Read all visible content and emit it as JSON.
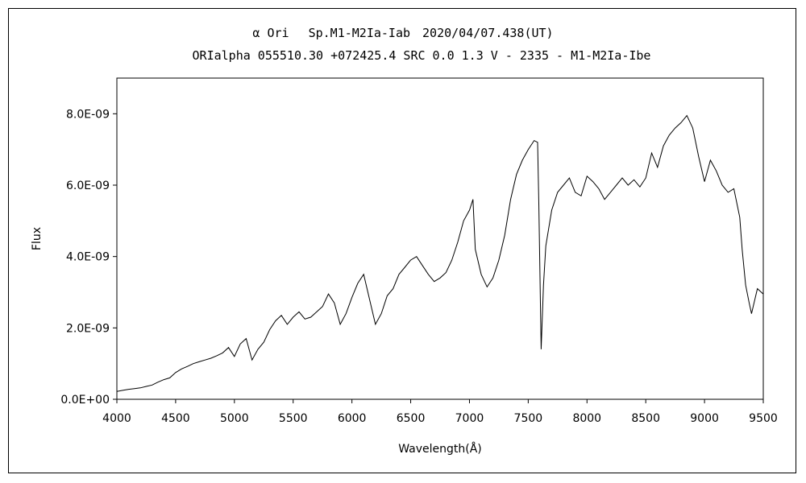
{
  "chart_data": {
    "type": "line",
    "title": "α Ori　 Sp.M1-M2Ia-Iab　2020/04/07.438(UT)",
    "subtitle": "ORIalpha 055510.30 +072425.4 SRC 0.0 1.3 V - 2335 - M1-M2Ia-Ibe",
    "xlabel": "Wavelength(Å)",
    "ylabel": "Flux",
    "xlim": [
      4000,
      9500
    ],
    "ylim": [
      0,
      9e-09
    ],
    "xticks": [
      4000,
      4500,
      5000,
      5500,
      6000,
      6500,
      7000,
      7500,
      8000,
      8500,
      9000,
      9500
    ],
    "yticks": [
      0,
      2e-09,
      4e-09,
      6e-09,
      8e-09
    ],
    "ytick_labels": [
      "0.0E+00",
      "2.0E-09",
      "4.0E-09",
      "6.0E-09",
      "8.0E-09"
    ],
    "grid": false,
    "series": [
      {
        "x": [
          4000,
          4050,
          4100,
          4150,
          4200,
          4250,
          4300,
          4350,
          4400,
          4450,
          4500,
          4550,
          4600,
          4650,
          4700,
          4750,
          4800,
          4850,
          4900,
          4950,
          5000,
          5050,
          5100,
          5150,
          5200,
          5250,
          5300,
          5350,
          5400,
          5450,
          5500,
          5550,
          5600,
          5650,
          5700,
          5750,
          5800,
          5850,
          5900,
          5950,
          6000,
          6050,
          6100,
          6150,
          6200,
          6250,
          6300,
          6350,
          6400,
          6450,
          6500,
          6550,
          6600,
          6650,
          6700,
          6750,
          6800,
          6850,
          6900,
          6950,
          7000,
          7030,
          7050,
          7100,
          7150,
          7200,
          7250,
          7300,
          7350,
          7400,
          7450,
          7500,
          7550,
          7580,
          7590,
          7610,
          7630,
          7650,
          7700,
          7750,
          7800,
          7850,
          7900,
          7950,
          8000,
          8050,
          8100,
          8150,
          8200,
          8250,
          8300,
          8350,
          8400,
          8450,
          8500,
          8550,
          8600,
          8650,
          8700,
          8750,
          8800,
          8850,
          8900,
          8950,
          9000,
          9050,
          9100,
          9150,
          9200,
          9250,
          9300,
          9320,
          9350,
          9380,
          9400,
          9450,
          9500
        ],
        "y": [
          2.2e-10,
          2.5e-10,
          2.8e-10,
          3e-10,
          3.2e-10,
          3.6e-10,
          4e-10,
          4.8e-10,
          5.5e-10,
          6e-10,
          7.5e-10,
          8.5e-10,
          9.2e-10,
          1e-09,
          1.05e-09,
          1.1e-09,
          1.15e-09,
          1.22e-09,
          1.3e-09,
          1.45e-09,
          1.2e-09,
          1.55e-09,
          1.7e-09,
          1.1e-09,
          1.4e-09,
          1.6e-09,
          1.95e-09,
          2.2e-09,
          2.35e-09,
          2.1e-09,
          2.3e-09,
          2.45e-09,
          2.25e-09,
          2.3e-09,
          2.45e-09,
          2.6e-09,
          2.95e-09,
          2.7e-09,
          2.1e-09,
          2.4e-09,
          2.85e-09,
          3.25e-09,
          3.5e-09,
          2.8e-09,
          2.1e-09,
          2.4e-09,
          2.9e-09,
          3.1e-09,
          3.5e-09,
          3.7e-09,
          3.9e-09,
          4e-09,
          3.75e-09,
          3.5e-09,
          3.3e-09,
          3.4e-09,
          3.55e-09,
          3.9e-09,
          4.4e-09,
          5e-09,
          5.3e-09,
          5.6e-09,
          4.2e-09,
          3.5e-09,
          3.15e-09,
          3.4e-09,
          3.9e-09,
          4.6e-09,
          5.6e-09,
          6.3e-09,
          6.7e-09,
          7e-09,
          7.25e-09,
          7.2e-09,
          5.5e-09,
          1.4e-09,
          3.2e-09,
          4.3e-09,
          5.3e-09,
          5.8e-09,
          6e-09,
          6.2e-09,
          5.8e-09,
          5.7e-09,
          6.25e-09,
          6.1e-09,
          5.9e-09,
          5.6e-09,
          5.8e-09,
          6e-09,
          6.2e-09,
          6e-09,
          6.15e-09,
          5.95e-09,
          6.2e-09,
          6.9e-09,
          6.5e-09,
          7.1e-09,
          7.4e-09,
          7.6e-09,
          7.75e-09,
          7.95e-09,
          7.6e-09,
          6.8e-09,
          6.1e-09,
          6.7e-09,
          6.4e-09,
          6e-09,
          5.8e-09,
          5.9e-09,
          5.1e-09,
          4.2e-09,
          3.2e-09,
          2.7e-09,
          2.4e-09,
          3.1e-09,
          2.95e-09
        ]
      }
    ]
  }
}
